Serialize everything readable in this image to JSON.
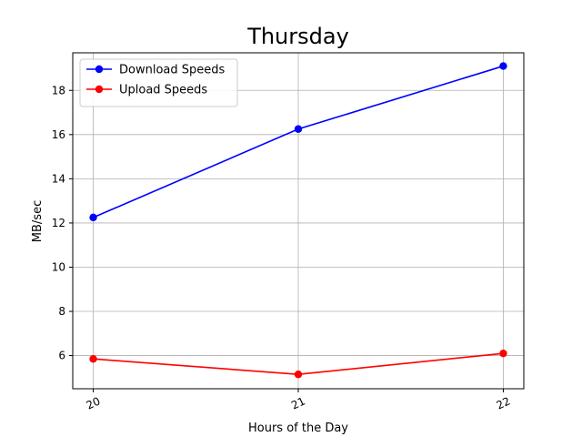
{
  "chart_data": {
    "type": "line",
    "title": "Thursday",
    "xlabel": "Hours of the Day",
    "ylabel": "MB/sec",
    "x": [
      20,
      21,
      22
    ],
    "x_tick_labels": [
      "20",
      "21",
      "22"
    ],
    "xlim": [
      19.9,
      22.1
    ],
    "ylim": [
      4.5,
      19.7
    ],
    "y_ticks": [
      6,
      8,
      10,
      12,
      14,
      16,
      18
    ],
    "grid": true,
    "legend_position": "top-left",
    "series": [
      {
        "name": "Download Speeds",
        "color": "#0000ff",
        "marker": "circle",
        "values": [
          12.25,
          16.25,
          19.1
        ]
      },
      {
        "name": "Upload Speeds",
        "color": "#ff0000",
        "marker": "circle",
        "values": [
          5.85,
          5.15,
          6.1
        ]
      }
    ]
  }
}
